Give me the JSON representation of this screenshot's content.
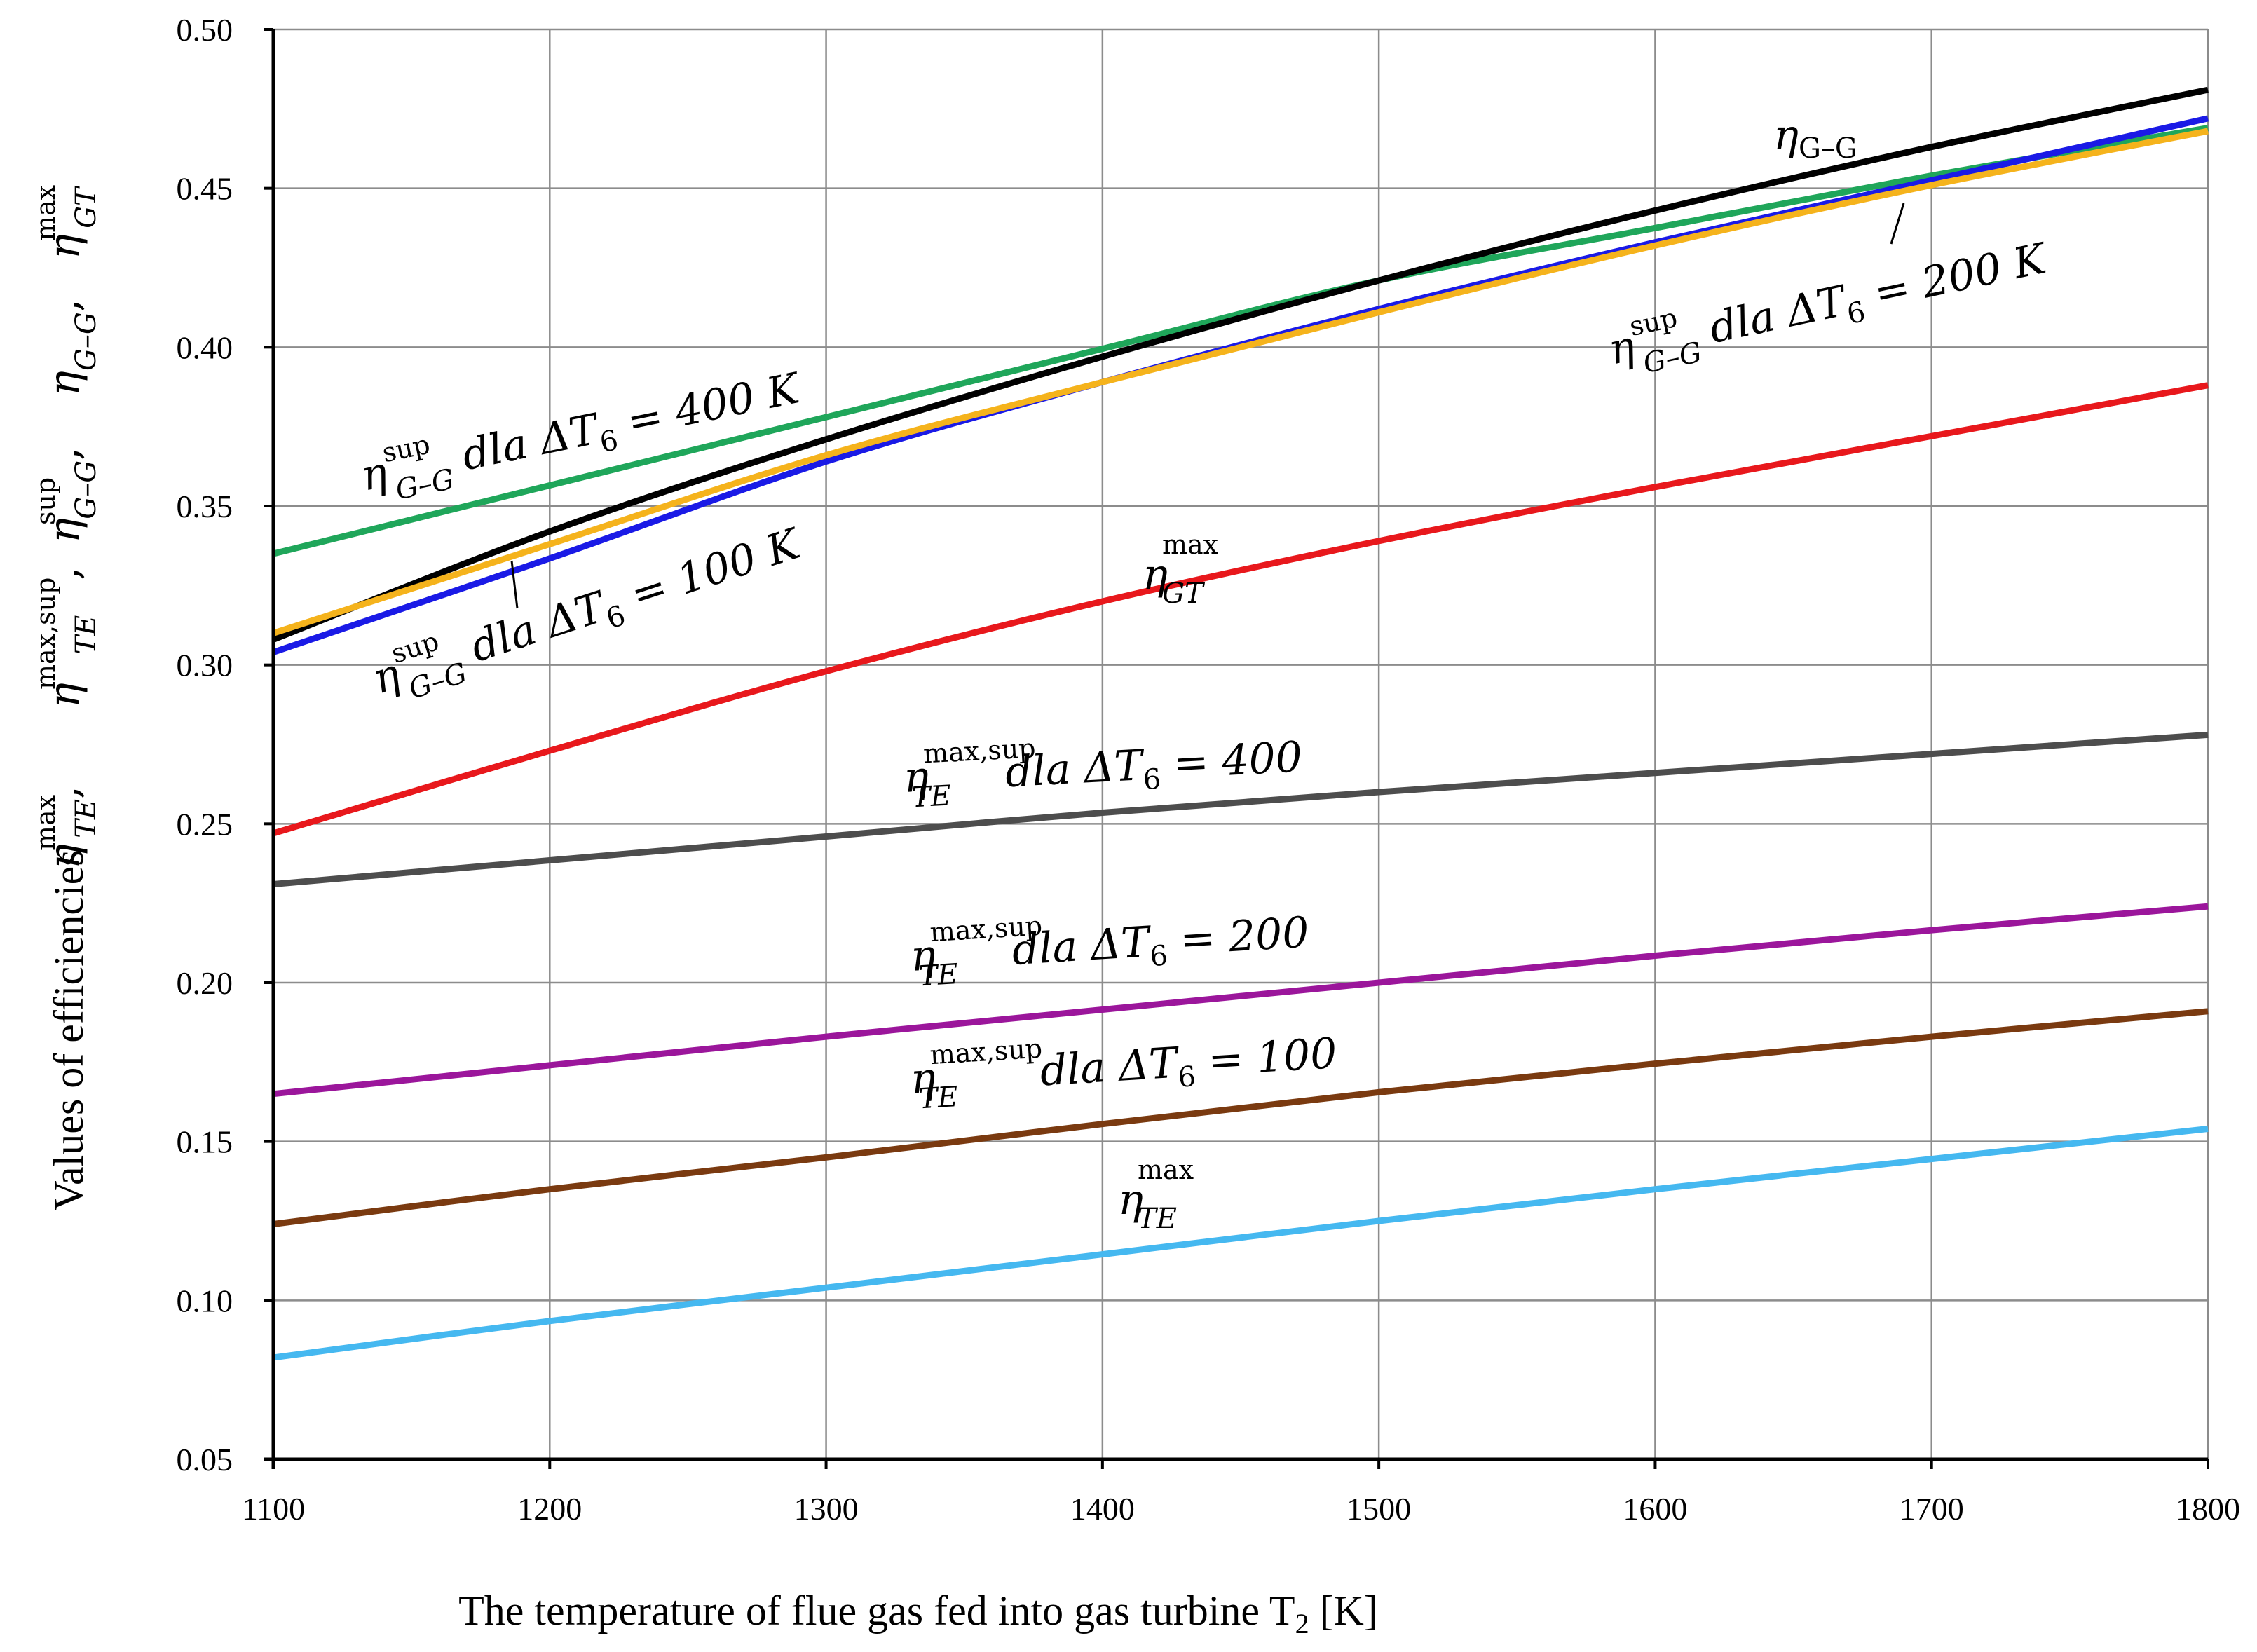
{
  "chart_data": {
    "type": "line",
    "title": "",
    "xlabel": "The temperature of flue gas fed into gas turbine T",
    "xlabel_sub": "2",
    "xlabel_unit": " [K]",
    "ylabel_text": "Values of efficiencies",
    "xlim": [
      1100,
      1800
    ],
    "ylim": [
      0.05,
      0.5
    ],
    "grid": true,
    "x_ticks": [
      "1100",
      "1200",
      "1300",
      "1400",
      "1500",
      "1600",
      "1700",
      "1800"
    ],
    "y_ticks": [
      "0.05",
      "0.10",
      "0.15",
      "0.20",
      "0.25",
      "0.30",
      "0.35",
      "0.40",
      "0.45",
      "0.50"
    ],
    "x": [
      1100,
      1200,
      1300,
      1400,
      1500,
      1600,
      1700,
      1800
    ],
    "series": [
      {
        "name": "eta_sup_GG_400",
        "color": "#1fa65a",
        "values": [
          0.335,
          0.3565,
          0.378,
          0.3995,
          0.421,
          0.4375,
          0.454,
          0.469
        ]
      },
      {
        "name": "eta_GG",
        "color": "#000000",
        "values": [
          0.308,
          0.342,
          0.371,
          0.397,
          0.421,
          0.443,
          0.463,
          0.481
        ]
      },
      {
        "name": "eta_sup_GG_100",
        "color": "#1a1ae6",
        "values": [
          0.304,
          0.3335,
          0.364,
          0.389,
          0.412,
          0.433,
          0.4525,
          0.472
        ]
      },
      {
        "name": "eta_sup_GG_200",
        "color": "#f5b31c",
        "values": [
          0.31,
          0.338,
          0.366,
          0.389,
          0.411,
          0.432,
          0.451,
          0.468
        ]
      },
      {
        "name": "eta_max_GT",
        "color": "#e8181c",
        "values": [
          0.247,
          0.273,
          0.298,
          0.32,
          0.339,
          0.356,
          0.372,
          0.388
        ]
      },
      {
        "name": "eta_max_sup_TE_400",
        "color": "#4d4d4d",
        "values": [
          0.231,
          0.2385,
          0.246,
          0.2535,
          0.26,
          0.266,
          0.272,
          0.278
        ]
      },
      {
        "name": "eta_max_sup_TE_200",
        "color": "#9b169b",
        "values": [
          0.165,
          0.174,
          0.183,
          0.1915,
          0.2,
          0.2085,
          0.2165,
          0.224
        ]
      },
      {
        "name": "eta_max_sup_TE_100",
        "color": "#7a3a10",
        "values": [
          0.124,
          0.135,
          0.145,
          0.1555,
          0.1655,
          0.1745,
          0.183,
          0.191
        ]
      },
      {
        "name": "eta_max_TE",
        "color": "#45b8f0",
        "values": [
          0.082,
          0.0935,
          0.104,
          0.1145,
          0.125,
          0.135,
          0.1445,
          0.154
        ]
      }
    ],
    "annotations": {
      "gg": {
        "main": "η",
        "sub": "G–G"
      },
      "sup400": {
        "main": "η",
        "sup": "sup",
        "sub": "G–G",
        "rest": " dla ΔT",
        "sub2": "6",
        "tail": " = 400 K"
      },
      "sup200": {
        "main": "η",
        "sup": "sup",
        "sub": "G–G",
        "rest": " dla ΔT",
        "sub2": "6",
        "tail": " = 200 K"
      },
      "sup100": {
        "main": "η",
        "sup": "sup",
        "sub": "G–G",
        "rest": " dla ΔT",
        "sub2": "6",
        "tail": " = 100 K"
      },
      "gt": {
        "main": "η",
        "sup": "max",
        "sub": "GT"
      },
      "te400": {
        "main": "η",
        "sup": "max,sup",
        "sub": "TE",
        "rest": "   dla ΔT",
        "sub2": "6",
        "tail": " = 400"
      },
      "te200": {
        "main": "η",
        "sup": "max,sup",
        "sub": "TE",
        "rest": "   dla ΔT",
        "sub2": "6",
        "tail": " = 200"
      },
      "te100": {
        "main": "η",
        "sup": "max,sup",
        "sub": "TE",
        "rest": "   dla ΔT",
        "sub2": "6",
        "tail": " = 100"
      },
      "te": {
        "main": "η",
        "sup": "max",
        "sub": "TE"
      }
    },
    "ylabel_symbols": {
      "te": {
        "main": "η",
        "sup": "max",
        "sub": "TE"
      },
      "te_sup": {
        "main": "η",
        "sup": "max,sup",
        "sub": "TE"
      },
      "gg_sup": {
        "main": "η",
        "sup": "sup",
        "sub": "G–G"
      },
      "gg": {
        "main": "η",
        "sub": "G–G"
      },
      "gt": {
        "main": "η",
        "sup": "max",
        "sub": "GT"
      },
      "sep": ", "
    }
  }
}
